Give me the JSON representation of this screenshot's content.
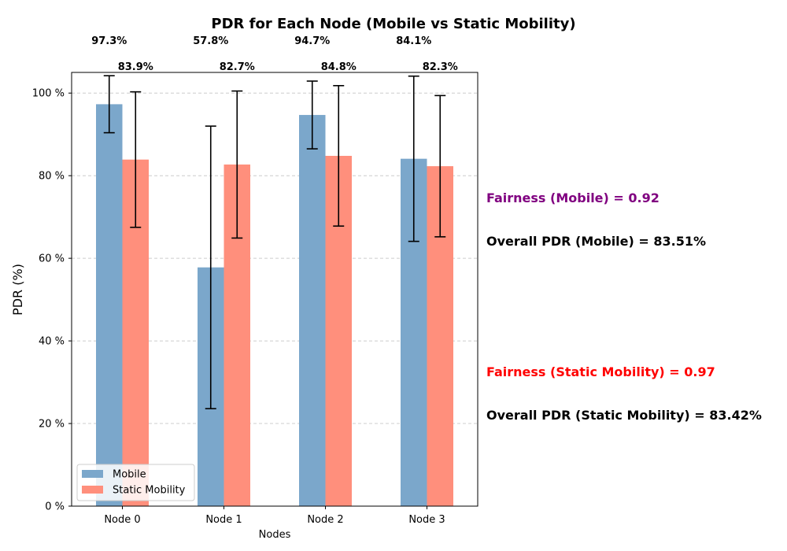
{
  "chart_data": {
    "type": "bar",
    "title": "PDR for Each Node (Mobile vs Static Mobility)",
    "xlabel": "Nodes",
    "ylabel": "PDR (%)",
    "categories": [
      "Node 0",
      "Node 1",
      "Node 2",
      "Node 3"
    ],
    "ylim": [
      0,
      105
    ],
    "yticks": [
      0,
      20,
      40,
      60,
      80,
      100
    ],
    "ytick_labels": [
      "0 %",
      "20 %",
      "40 %",
      "60 %",
      "80 %",
      "100 %"
    ],
    "grid": "y-dashed",
    "legend_position": "lower-left",
    "series": [
      {
        "name": "Mobile",
        "color": "#7BA7CB",
        "values": [
          97.3,
          57.8,
          94.7,
          84.1
        ],
        "errors": [
          6.9,
          34.2,
          8.2,
          20.0
        ],
        "labels": [
          "97.3%",
          "57.8%",
          "94.7%",
          "84.1%"
        ]
      },
      {
        "name": "Static Mobility",
        "color": "#FF8F7C",
        "values": [
          83.9,
          82.7,
          84.8,
          82.3
        ],
        "errors": [
          16.4,
          17.8,
          17.0,
          17.1
        ],
        "labels": [
          "83.9%",
          "82.7%",
          "84.8%",
          "82.3%"
        ]
      }
    ],
    "annotations": [
      {
        "text": "Fairness (Mobile) = 0.92",
        "color": "#800080"
      },
      {
        "text": "Overall PDR (Mobile) = 83.51%",
        "color": "#000000"
      },
      {
        "text": "Fairness (Static Mobility) = 0.97",
        "color": "#FF0000"
      },
      {
        "text": "Overall PDR (Static Mobility) = 83.42%",
        "color": "#000000"
      }
    ]
  }
}
